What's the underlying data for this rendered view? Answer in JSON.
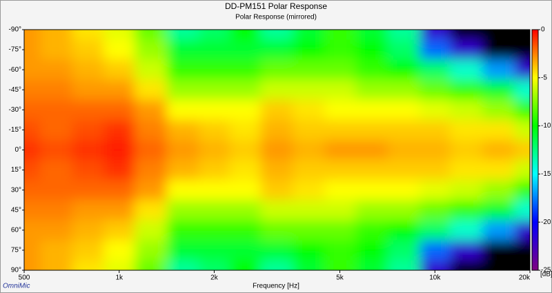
{
  "chart_data": {
    "type": "heatmap",
    "title": "DD-PM151 Polar Response",
    "subtitle": "Polar Response (mirrored)",
    "xlabel": "Frequency [Hz]",
    "zlabel": "[dB]",
    "watermark": "OmniMic",
    "xscale": "log",
    "x": [
      500,
      630,
      800,
      1000,
      1250,
      1600,
      2000,
      2500,
      3150,
      4000,
      5000,
      6300,
      8000,
      10000,
      12500,
      16000,
      20000
    ],
    "y": [
      -90,
      -75,
      -60,
      -45,
      -30,
      -15,
      0,
      15,
      30,
      45,
      60,
      75,
      90
    ],
    "z": [
      [
        -3,
        -3.5,
        -4.5,
        -5.5,
        -8,
        -13,
        -12,
        -10,
        -13,
        -11,
        -9,
        -11,
        -13,
        -22,
        -30,
        -30,
        -30
      ],
      [
        -3,
        -3.5,
        -4,
        -5,
        -7,
        -11,
        -11,
        -11,
        -11,
        -10,
        -9,
        -10,
        -12,
        -18,
        -22,
        -26,
        -30
      ],
      [
        -3,
        -3,
        -3.5,
        -4,
        -6,
        -9,
        -9,
        -9,
        -8,
        -8,
        -8,
        -9,
        -10,
        -12,
        -14,
        -17,
        -22
      ],
      [
        -2.5,
        -2.5,
        -3,
        -3,
        -4.5,
        -7,
        -7,
        -7,
        -6,
        -6,
        -6,
        -7,
        -7,
        -8,
        -9,
        -11,
        -14
      ],
      [
        -2,
        -2,
        -2,
        -2,
        -3,
        -5,
        -5,
        -5,
        -4,
        -4.5,
        -5,
        -5,
        -5,
        -5.5,
        -6,
        -7,
        -9
      ],
      [
        -1.5,
        -2,
        -1.5,
        -1,
        -2.5,
        -3.5,
        -4,
        -4.5,
        -3.5,
        -4,
        -4,
        -4,
        -4,
        -4,
        -4.5,
        -4.5,
        -6
      ],
      [
        -1,
        -1.5,
        -1,
        -0.5,
        -2,
        -3,
        -3.5,
        -4,
        -3,
        -3.5,
        -3,
        -3,
        -3.5,
        -3.5,
        -4,
        -3.5,
        -4
      ],
      [
        -1.5,
        -2,
        -1.5,
        -1,
        -2.5,
        -3.5,
        -4,
        -4.5,
        -3.5,
        -4,
        -4,
        -4,
        -4,
        -4,
        -4.5,
        -4.5,
        -6
      ],
      [
        -2,
        -2,
        -2,
        -2,
        -3,
        -5,
        -5,
        -5,
        -4,
        -4.5,
        -5,
        -5,
        -5,
        -5.5,
        -6,
        -7,
        -9
      ],
      [
        -2.5,
        -2.5,
        -3,
        -3,
        -4.5,
        -7,
        -7,
        -7,
        -6,
        -6,
        -6,
        -7,
        -7,
        -8,
        -9,
        -11,
        -14
      ],
      [
        -3,
        -3,
        -3.5,
        -4,
        -6,
        -9,
        -9,
        -9,
        -8,
        -8,
        -8,
        -9,
        -10,
        -12,
        -14,
        -17,
        -22
      ],
      [
        -3,
        -3.5,
        -4,
        -5,
        -7,
        -11,
        -11,
        -11,
        -11,
        -10,
        -9,
        -10,
        -12,
        -18,
        -22,
        -26,
        -30
      ],
      [
        -3,
        -3.5,
        -4.5,
        -5.5,
        -8,
        -13,
        -12,
        -10,
        -13,
        -11,
        -9,
        -11,
        -13,
        -22,
        -30,
        -30,
        -30
      ]
    ],
    "xlim": [
      500,
      20000
    ],
    "ylim": [
      -90,
      90
    ],
    "xticks": [
      500,
      {
        "value": 1000,
        "label": "1k"
      },
      {
        "value": 2000,
        "label": "2k"
      },
      {
        "value": 5000,
        "label": "5k"
      },
      {
        "value": 10000,
        "label": "10k"
      },
      {
        "value": 20000,
        "label": "20k"
      }
    ],
    "yticks": [
      {
        "value": -90,
        "label": "-90°"
      },
      {
        "value": -75,
        "label": "-75°"
      },
      {
        "value": -60,
        "label": "-60°"
      },
      {
        "value": -45,
        "label": "-45°"
      },
      {
        "value": -30,
        "label": "-30°"
      },
      {
        "value": -15,
        "label": "-15°"
      },
      {
        "value": 0,
        "label": "0°"
      },
      {
        "value": 15,
        "label": "15°"
      },
      {
        "value": 30,
        "label": "30°"
      },
      {
        "value": 45,
        "label": "45°"
      },
      {
        "value": 60,
        "label": "60°"
      },
      {
        "value": 75,
        "label": "75°"
      },
      {
        "value": 90,
        "label": "90°"
      }
    ],
    "zlim": [
      -25,
      0
    ],
    "zticks": [
      0,
      -5,
      -10,
      -15,
      -20,
      -25
    ],
    "colors": [
      "#ff0000",
      "#ffff00",
      "#00ff00",
      "#00ffff",
      "#0000ff",
      "#800080"
    ],
    "below_color": "#000000"
  }
}
